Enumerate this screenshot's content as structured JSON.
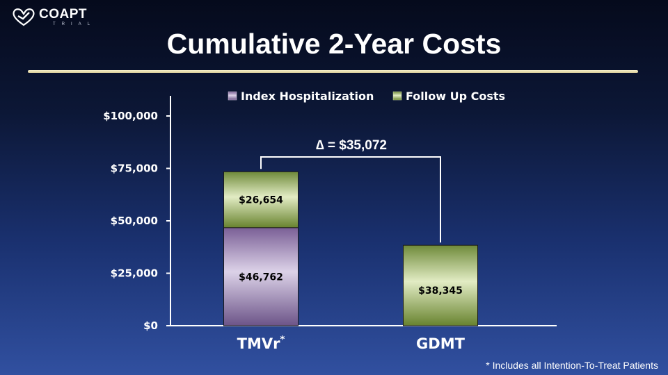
{
  "logo": {
    "name": "COAPT",
    "sub": "TRIAL",
    "icon": "heart-icon"
  },
  "title": "Cumulative 2-Year Costs",
  "footnote": "* Includes all Intention-To-Treat Patients",
  "colors": {
    "index_hospitalization": "#b6a4c8",
    "follow_up": "#a9c277",
    "rule": "#efe4b4"
  },
  "chart_data": {
    "type": "bar",
    "stacked": true,
    "categories": [
      "TMVr",
      "GDMT"
    ],
    "category_superscripts": [
      "*",
      ""
    ],
    "series": [
      {
        "name": "Index Hospitalization",
        "values": [
          46762,
          0
        ],
        "labels": [
          "$46,762",
          ""
        ]
      },
      {
        "name": "Follow Up Costs",
        "values": [
          26654,
          38345
        ],
        "labels": [
          "$26,654",
          "$38,345"
        ]
      }
    ],
    "ylim": [
      0,
      100000
    ],
    "yticks": [
      0,
      25000,
      50000,
      75000,
      100000
    ],
    "ytick_labels": [
      "$0",
      "$25,000",
      "$50,000",
      "$75,000",
      "$100,000"
    ],
    "annotation": "∆ = $35,072",
    "grid": false,
    "legend_position": "top"
  }
}
